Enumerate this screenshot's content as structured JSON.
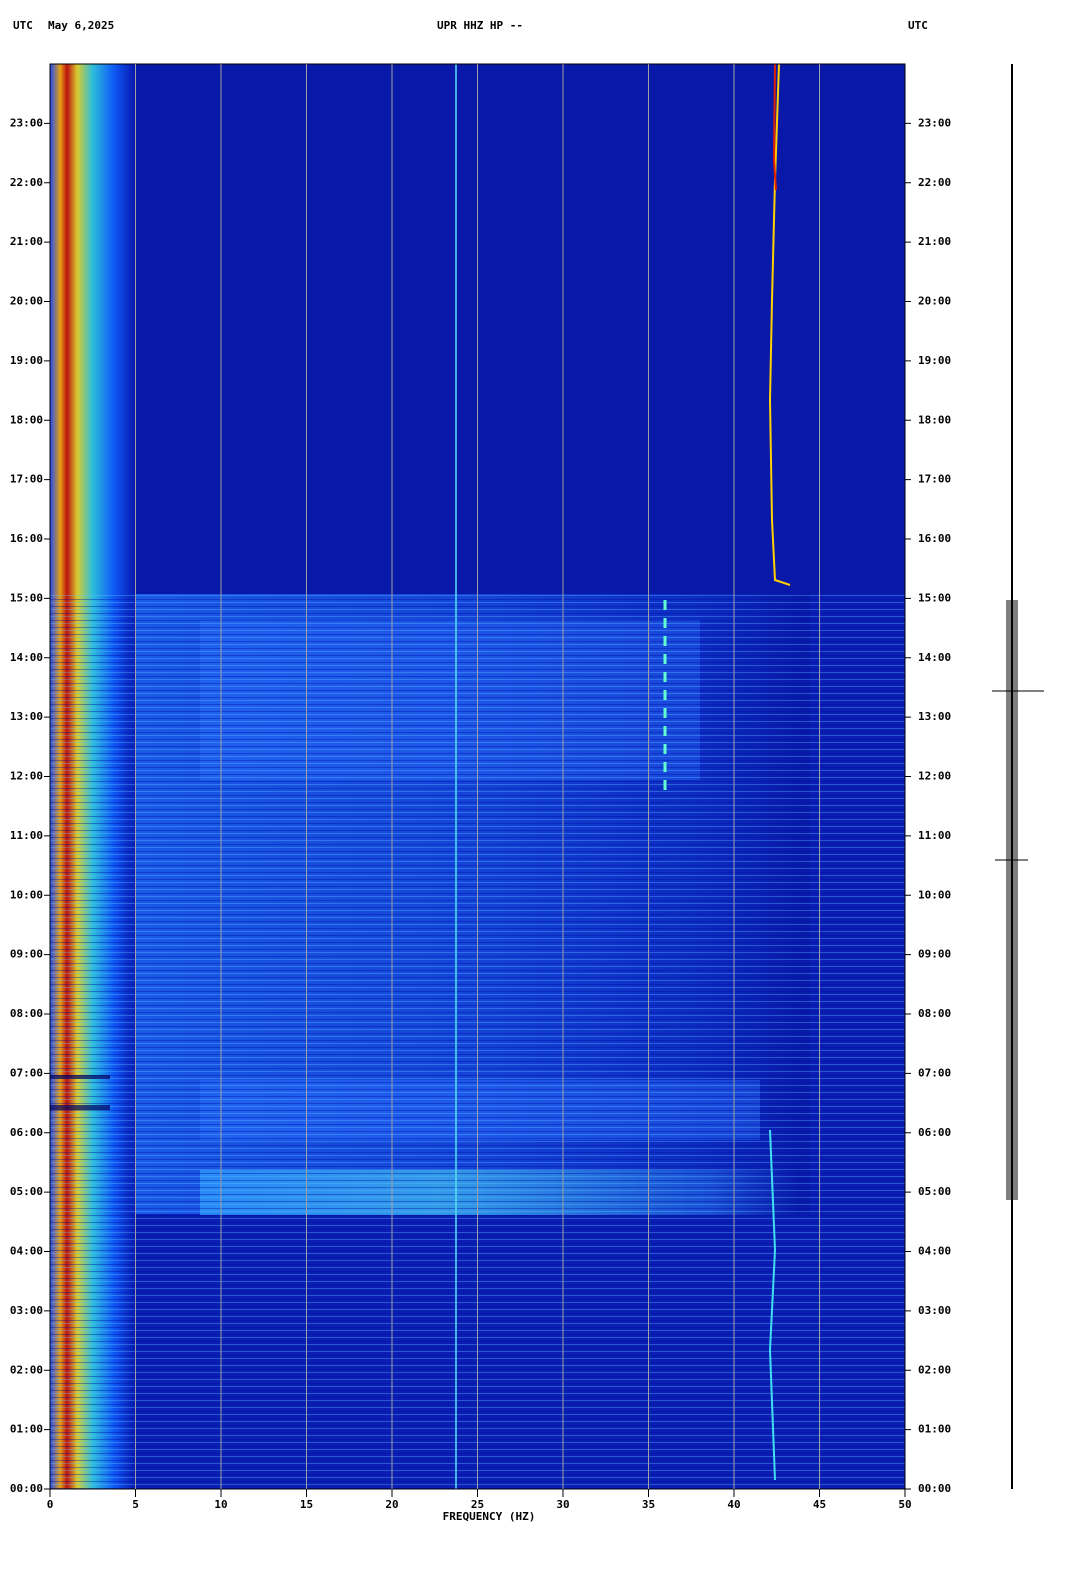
{
  "chart_data": {
    "type": "spectrogram",
    "title": "UPR HHZ HP --",
    "date": "May 6,2025",
    "timezone_left": "UTC",
    "timezone_right": "UTC",
    "x_label": "FREQUENCY (HZ)",
    "xlim": [
      0,
      50
    ],
    "xticks": [
      0,
      5,
      10,
      15,
      20,
      25,
      30,
      35,
      40,
      45,
      50
    ],
    "ylim": [
      0,
      24
    ],
    "yticks": [
      {
        "value": 0,
        "label": "00:00"
      },
      {
        "value": 1,
        "label": "01:00"
      },
      {
        "value": 2,
        "label": "02:00"
      },
      {
        "value": 3,
        "label": "03:00"
      },
      {
        "value": 4,
        "label": "04:00"
      },
      {
        "value": 5,
        "label": "05:00"
      },
      {
        "value": 6,
        "label": "06:00"
      },
      {
        "value": 7,
        "label": "07:00"
      },
      {
        "value": 8,
        "label": "08:00"
      },
      {
        "value": 9,
        "label": "09:00"
      },
      {
        "value": 10,
        "label": "10:00"
      },
      {
        "value": 11,
        "label": "11:00"
      },
      {
        "value": 12,
        "label": "12:00"
      },
      {
        "value": 13,
        "label": "13:00"
      },
      {
        "value": 14,
        "label": "14:00"
      },
      {
        "value": 15,
        "label": "15:00"
      },
      {
        "value": 16,
        "label": "16:00"
      },
      {
        "value": 17,
        "label": "17:00"
      },
      {
        "value": 18,
        "label": "18:00"
      },
      {
        "value": 19,
        "label": "19:00"
      },
      {
        "value": 20,
        "label": "20:00"
      },
      {
        "value": 21,
        "label": "21:00"
      },
      {
        "value": 22,
        "label": "22:00"
      },
      {
        "value": 23,
        "label": "23:00"
      }
    ],
    "grid": true,
    "grid_color": "#a0a0a0"
  }
}
